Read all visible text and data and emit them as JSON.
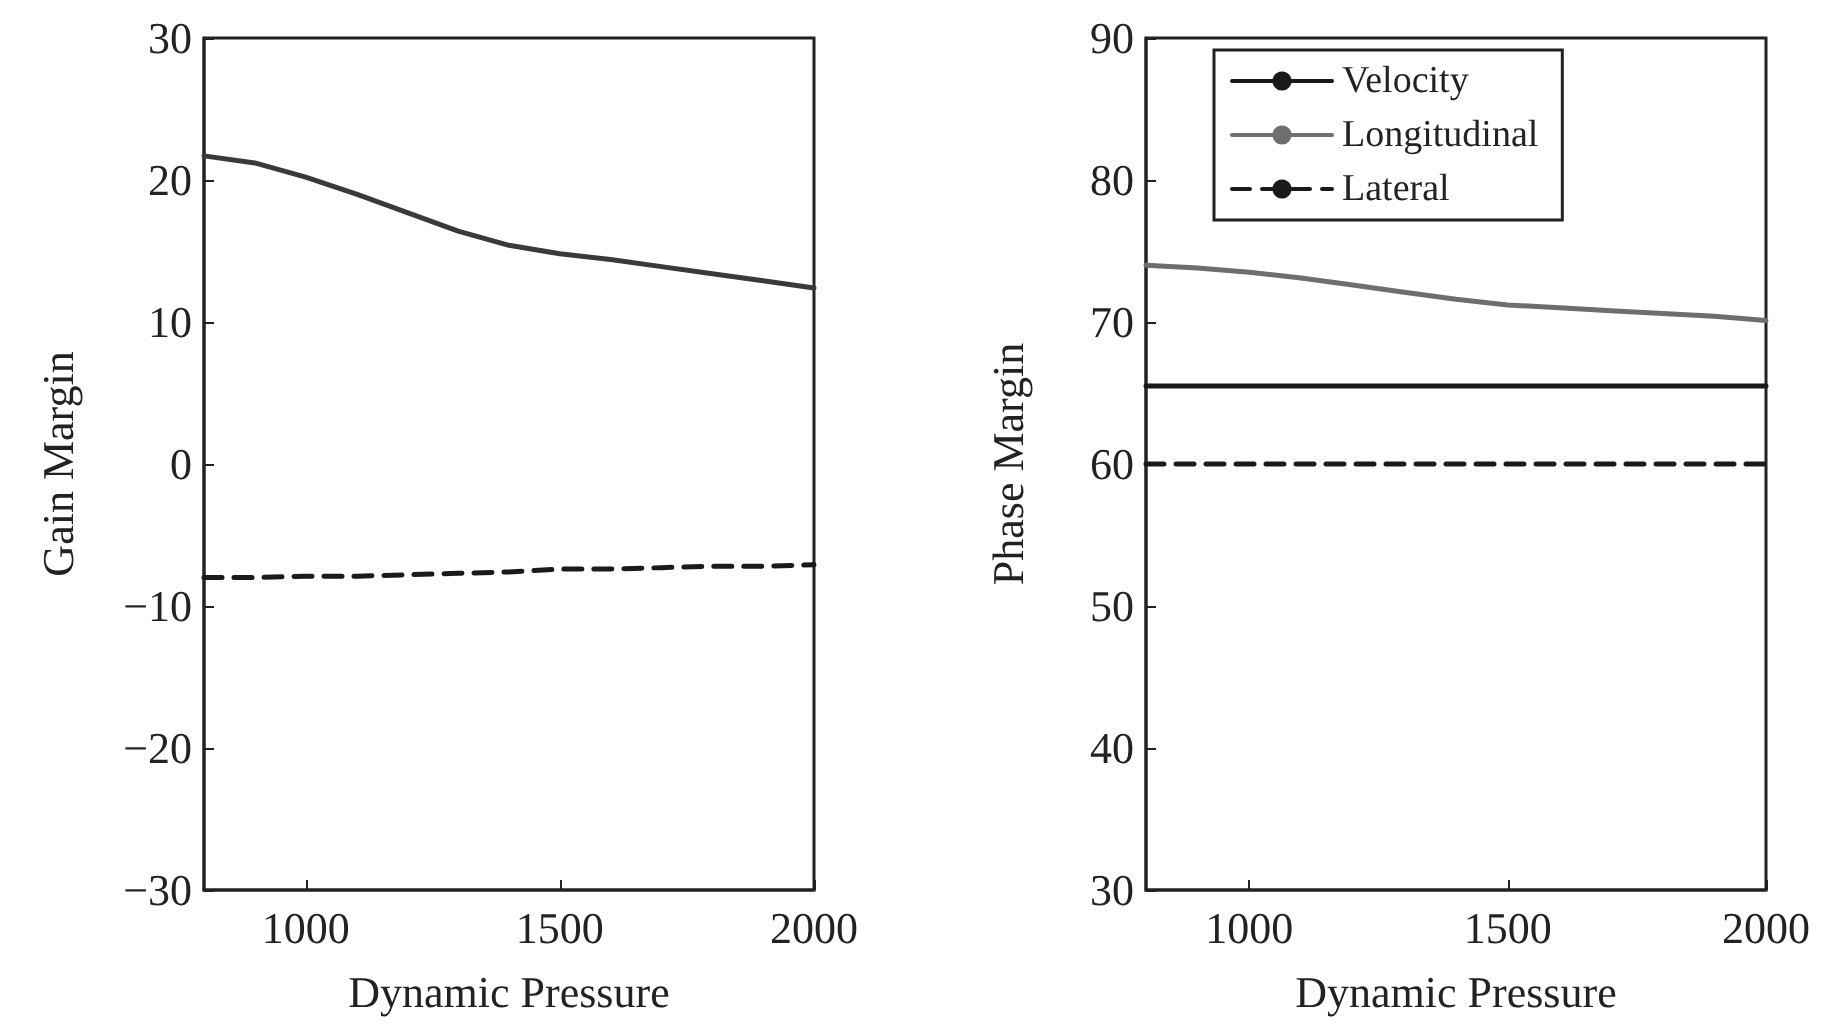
{
  "chart_data": [
    {
      "type": "line",
      "xlabel": "Dynamic Pressure",
      "ylabel": "Gain Margin",
      "x": [
        800,
        900,
        1000,
        1100,
        1200,
        1300,
        1400,
        1500,
        1600,
        1700,
        1800,
        1900,
        2000
      ],
      "xlim": [
        800,
        2000
      ],
      "xticks": [
        1000,
        1500,
        2000
      ],
      "ylim": [
        -30,
        30
      ],
      "yticks": [
        -30,
        -20,
        -10,
        0,
        10,
        20,
        30
      ],
      "marker": "none",
      "grid": false,
      "legend": false,
      "series": [
        {
          "color": "#3a3a3a",
          "line_style": "solid",
          "values": [
            21.7,
            21.2,
            20.2,
            19.0,
            17.7,
            16.4,
            15.4,
            14.8,
            14.4,
            13.9,
            13.4,
            12.9,
            12.4
          ]
        },
        {
          "color": "#1a1a1a",
          "line_style": "dashed",
          "values": [
            -8.0,
            -8.0,
            -7.9,
            -7.9,
            -7.8,
            -7.7,
            -7.6,
            -7.4,
            -7.4,
            -7.3,
            -7.2,
            -7.2,
            -7.1
          ]
        }
      ]
    },
    {
      "type": "line",
      "xlabel": "Dynamic Pressure",
      "ylabel": "Phase Margin",
      "x": [
        800,
        900,
        1000,
        1100,
        1200,
        1300,
        1400,
        1500,
        1600,
        1700,
        1800,
        1900,
        2000
      ],
      "xlim": [
        800,
        2000
      ],
      "xticks": [
        1000,
        1500,
        2000
      ],
      "ylim": [
        30,
        90
      ],
      "yticks": [
        30,
        40,
        50,
        60,
        70,
        80,
        90
      ],
      "marker": "none",
      "grid": false,
      "legend": "top",
      "series": [
        {
          "name": "Velocity",
          "color": "#1a1a1a",
          "line_style": "solid",
          "values": [
            65.5,
            65.5,
            65.5,
            65.5,
            65.5,
            65.5,
            65.5,
            65.5,
            65.5,
            65.5,
            65.5,
            65.5,
            65.5
          ]
        },
        {
          "name": "Longitudinal",
          "color": "#6e6e6e",
          "line_style": "solid",
          "values": [
            74.0,
            73.8,
            73.5,
            73.1,
            72.6,
            72.1,
            71.6,
            71.2,
            71.0,
            70.8,
            70.6,
            70.4,
            70.1
          ]
        },
        {
          "name": "Lateral",
          "color": "#1a1a1a",
          "line_style": "dashed",
          "values": [
            60,
            60,
            60,
            60,
            60,
            60,
            60,
            60,
            60,
            60,
            60,
            60,
            60
          ]
        }
      ]
    }
  ]
}
